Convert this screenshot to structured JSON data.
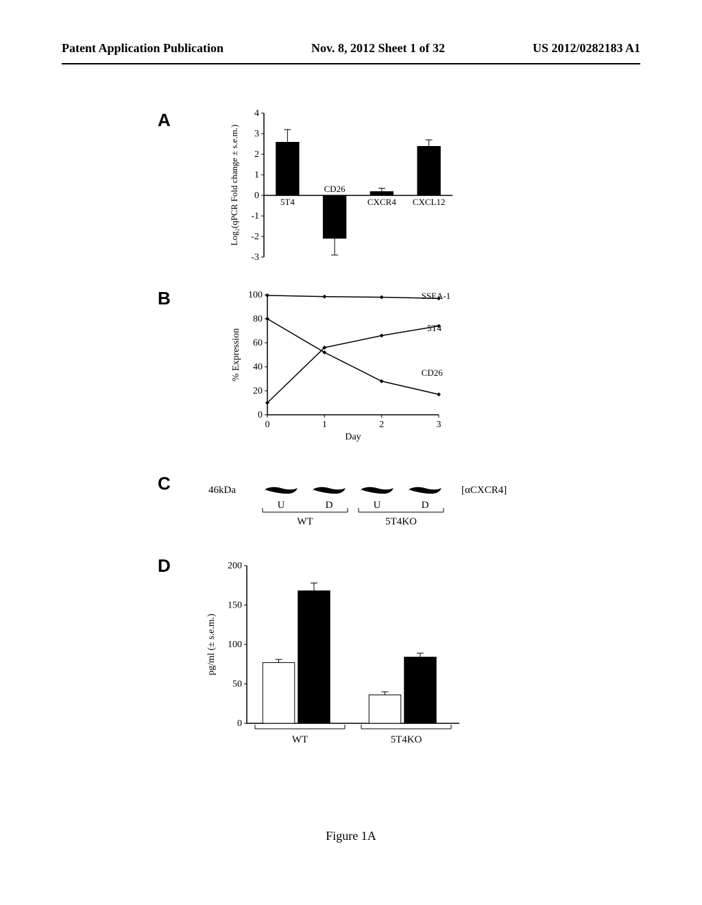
{
  "header": {
    "left": "Patent Application Publication",
    "center": "Nov. 8, 2012  Sheet 1 of 32",
    "right": "US 2012/0282183 A1"
  },
  "figure_caption": "Figure 1A",
  "panelA": {
    "label": "A",
    "type": "bar",
    "ylabel": "Log₂(qPCR Fold change ± s.e.m.)",
    "ylim": [
      -3,
      4
    ],
    "yticks": [
      -3,
      -2,
      -1,
      0,
      1,
      2,
      3,
      4
    ],
    "categories": [
      "5T4",
      "CD26",
      "CXCR4",
      "CXCL12"
    ],
    "values": [
      2.6,
      -2.1,
      0.2,
      2.4
    ],
    "errors": [
      0.6,
      0.8,
      0.15,
      0.3
    ],
    "bar_color": "#000000",
    "error_color": "#000000",
    "axis_color": "#000000",
    "bar_width": 0.5
  },
  "panelB": {
    "label": "B",
    "type": "line",
    "xlabel": "Day",
    "ylabel": "% Expression",
    "xlim": [
      0,
      3
    ],
    "ylim": [
      0,
      100
    ],
    "xticks": [
      0,
      1,
      2,
      3
    ],
    "yticks": [
      0,
      20,
      40,
      60,
      80,
      100
    ],
    "series": [
      {
        "name": "SSEA-1",
        "label_x": 2.6,
        "label_y": 99,
        "data": [
          [
            0,
            99.5
          ],
          [
            1,
            98.5
          ],
          [
            2,
            98
          ],
          [
            3,
            97
          ]
        ]
      },
      {
        "name": "5T4",
        "label_x": 2.7,
        "label_y": 72,
        "data": [
          [
            0,
            10
          ],
          [
            1,
            56
          ],
          [
            2,
            66
          ],
          [
            3,
            74
          ]
        ]
      },
      {
        "name": "CD26",
        "label_x": 2.6,
        "label_y": 35,
        "data": [
          [
            0,
            80
          ],
          [
            1,
            52
          ],
          [
            2,
            28
          ],
          [
            3,
            17
          ]
        ]
      }
    ],
    "line_color": "#000000",
    "axis_color": "#000000"
  },
  "panelC": {
    "label": "C",
    "type": "blot",
    "mw_label": "46kDa",
    "antibody_label": "[αCXCR4]",
    "lane_labels": [
      "U",
      "D",
      "U",
      "D"
    ],
    "group_labels": [
      "WT",
      "5T4KO"
    ],
    "band_color": "#000000"
  },
  "panelD": {
    "label": "D",
    "type": "bar",
    "ylabel": "pg/ml (± s.e.m.)",
    "ylim": [
      0,
      200
    ],
    "yticks": [
      0,
      50,
      100,
      150,
      200
    ],
    "groups": [
      "WT",
      "5T4KO"
    ],
    "bars": [
      {
        "group": "WT",
        "value": 77,
        "error": 4,
        "fill": "#ffffff"
      },
      {
        "group": "WT",
        "value": 168,
        "error": 10,
        "fill": "#000000"
      },
      {
        "group": "5T4KO",
        "value": 36,
        "error": 4,
        "fill": "#ffffff"
      },
      {
        "group": "5T4KO",
        "value": 84,
        "error": 5,
        "fill": "#000000"
      }
    ],
    "axis_color": "#000000",
    "bar_width": 0.7
  }
}
